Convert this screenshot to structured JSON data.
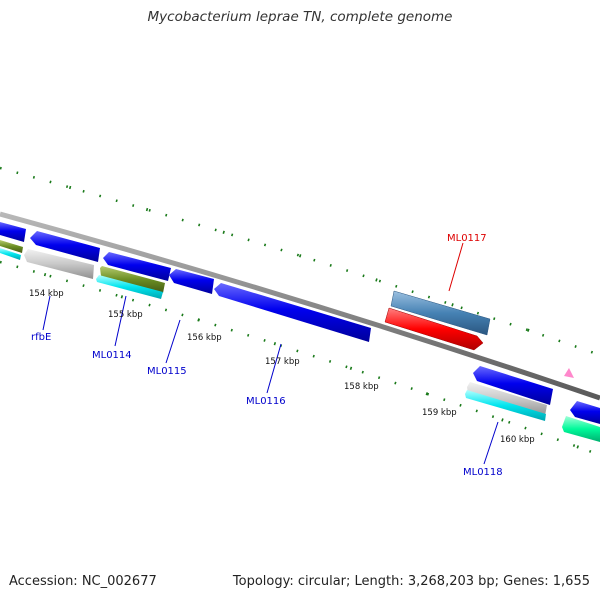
{
  "title": "Mycobacterium leprae TN, complete genome",
  "footer": {
    "accession": "Accession: NC_002677",
    "summary": "Topology: circular; Length: 3,268,203 bp; Genes: 1,655"
  },
  "ruler_labels": [
    "154 kbp",
    "155 kbp",
    "156 kbp",
    "157 kbp",
    "158 kbp",
    "159 kbp",
    "160 kbp"
  ],
  "gene_labels": [
    {
      "text": "rfbE",
      "strand": "minus"
    },
    {
      "text": "ML0114",
      "strand": "minus"
    },
    {
      "text": "ML0115",
      "strand": "minus"
    },
    {
      "text": "ML0116",
      "strand": "minus"
    },
    {
      "text": "ML0117",
      "strand": "plus"
    },
    {
      "text": "ML0118",
      "strand": "minus"
    }
  ],
  "colors": {
    "cds": "#0000ee",
    "gene_gray": "#c0c0c0",
    "cyan": "#00e5ee",
    "olive": "#6b8e23",
    "steelblue": "#4682b4",
    "red": "#ff0000",
    "mint": "#00fa9a",
    "pink": "#ff88cc",
    "ticks": "#1a7a1a",
    "backbone": "#888888",
    "label_blue": "#0000cc",
    "label_red": "#dd0000"
  }
}
